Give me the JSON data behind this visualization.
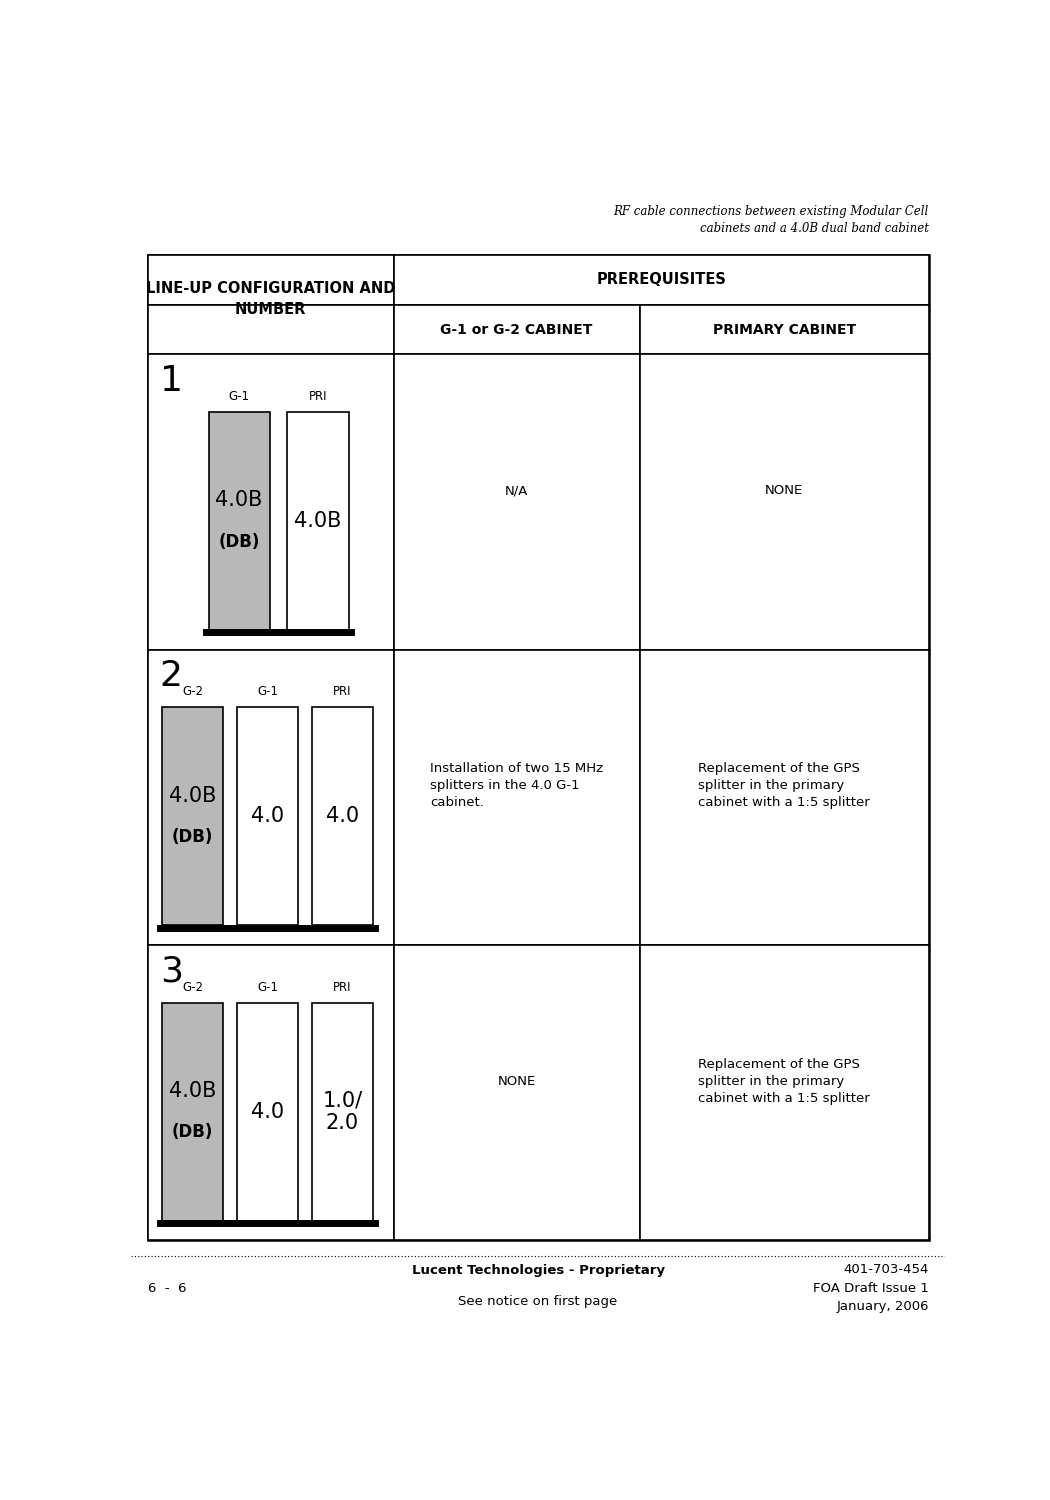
{
  "header_title": "RF cable connections between existing Modular Cell\ncabinets and a 4.0B dual band cabinet",
  "col1_header": "LINE-UP CONFIGURATION AND\nNUMBER",
  "prerequisites_header": "PREREQUISITES",
  "col2_header": "G-1 or G-2 CABINET",
  "col3_header": "PRIMARY CABINET",
  "rows": [
    {
      "row_num": "1",
      "cabinets": [
        {
          "label": "G-1",
          "color": "gray",
          "text": "4.0B",
          "subtext": "(DB)"
        },
        {
          "label": "PRI",
          "color": "white",
          "text": "4.0B",
          "subtext": ""
        }
      ],
      "col2_text": "N/A",
      "col3_text": "NONE"
    },
    {
      "row_num": "2",
      "cabinets": [
        {
          "label": "G-2",
          "color": "gray",
          "text": "4.0B",
          "subtext": "(DB)"
        },
        {
          "label": "G-1",
          "color": "white",
          "text": "4.0",
          "subtext": ""
        },
        {
          "label": "PRI",
          "color": "white",
          "text": "4.0",
          "subtext": ""
        }
      ],
      "col2_text": "Installation of two 15 MHz\nsplitters in the 4.0 G-1\ncabinet.",
      "col3_text": "Replacement of the GPS\nsplitter in the primary\ncabinet with a 1:5 splitter"
    },
    {
      "row_num": "3",
      "cabinets": [
        {
          "label": "G-2",
          "color": "gray",
          "text": "4.0B",
          "subtext": "(DB)"
        },
        {
          "label": "G-1",
          "color": "white",
          "text": "4.0",
          "subtext": ""
        },
        {
          "label": "PRI",
          "color": "white",
          "text": "1.0/\n2.0",
          "subtext": ""
        }
      ],
      "col2_text": "NONE",
      "col3_text": "Replacement of the GPS\nsplitter in the primary\ncabinet with a 1:5 splitter"
    }
  ],
  "footer_left": "6  -  6",
  "footer_center_line1": "Lucent Technologies - Proprietary",
  "footer_center_line2": "See notice on first page",
  "footer_right_line1": "401-703-454",
  "footer_right_line2": "FOA Draft Issue 1",
  "footer_right_line3": "January, 2006",
  "bg_color": "#ffffff",
  "gray_color": "#b8b8b8"
}
